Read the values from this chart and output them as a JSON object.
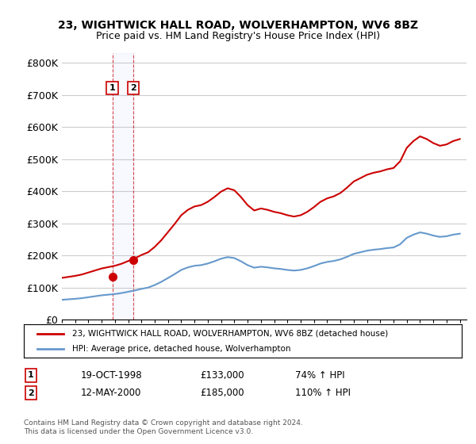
{
  "title": "23, WIGHTWICK HALL ROAD, WOLVERHAMPTON, WV6 8BZ",
  "subtitle": "Price paid vs. HM Land Registry's House Price Index (HPI)",
  "ylabel_ticks": [
    "£0",
    "£100K",
    "£200K",
    "£300K",
    "£400K",
    "£500K",
    "£600K",
    "£700K",
    "£800K"
  ],
  "ytick_values": [
    0,
    100000,
    200000,
    300000,
    400000,
    500000,
    600000,
    700000,
    800000
  ],
  "ylim": [
    0,
    830000
  ],
  "xlim_start": 1995.0,
  "xlim_end": 2025.5,
  "hpi_color": "#6699cc",
  "price_color": "#cc0000",
  "sale1_x": 1998.8,
  "sale1_y": 133000,
  "sale2_x": 2000.37,
  "sale2_y": 185000,
  "legend_label1": "23, WIGHTWICK HALL ROAD, WOLVERHAMPTON, WV6 8BZ (detached house)",
  "legend_label2": "HPI: Average price, detached house, Wolverhampton",
  "table_row1": [
    "1",
    "19-OCT-1998",
    "£133,000",
    "74% ↑ HPI"
  ],
  "table_row2": [
    "2",
    "12-MAY-2000",
    "£185,000",
    "110% ↑ HPI"
  ],
  "footnote": "Contains HM Land Registry data © Crown copyright and database right 2024.\nThis data is licensed under the Open Government Licence v3.0.",
  "background_color": "#ffffff",
  "grid_color": "#cccccc"
}
